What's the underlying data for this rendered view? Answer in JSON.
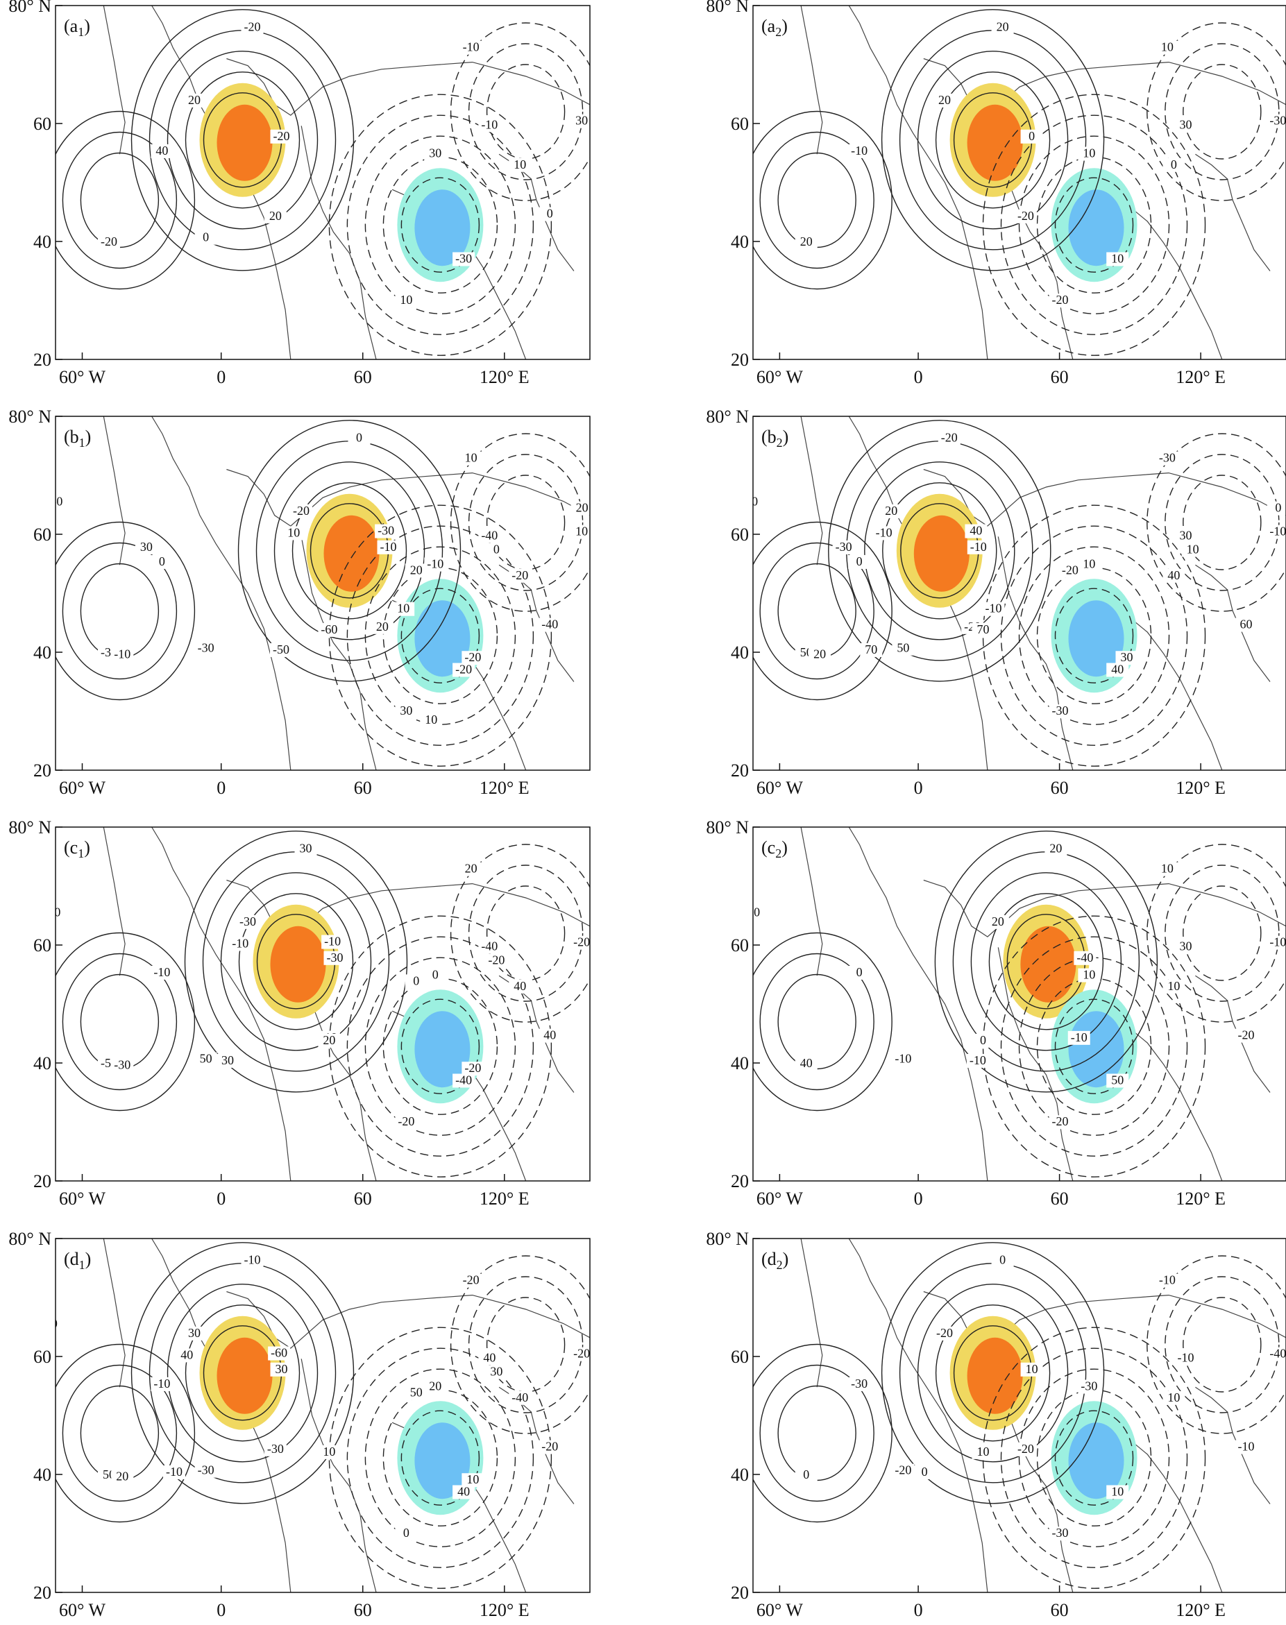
{
  "figure": {
    "panels": [
      {
        "id": "a1",
        "label": "(a",
        "subscript": "1",
        "label_tail": ")",
        "contour_labels": [
          "-20",
          "-30",
          "-20",
          "-10",
          "20",
          "30",
          "40",
          "30",
          "20",
          "10",
          "0",
          "-10",
          "-20",
          "10",
          "0",
          "0"
        ],
        "shading": [
          {
            "kind": "negative",
            "name": "cyan-patch"
          },
          {
            "kind": "positive",
            "name": "orange-patch"
          }
        ]
      },
      {
        "id": "a2",
        "label": "(a",
        "subscript": "2",
        "label_tail": ")",
        "contour_labels": [
          "0",
          "10",
          "20",
          "30",
          "20",
          "10",
          "-10",
          "-30",
          "-20",
          "-20",
          "-10",
          "10",
          "20",
          "0"
        ],
        "shading": [
          {
            "kind": "negative",
            "name": "blue-patch"
          },
          {
            "kind": "positive",
            "name": "orange-patch"
          }
        ]
      },
      {
        "id": "b1",
        "label": "(b",
        "subscript": "1",
        "label_tail": ")",
        "contour_labels": [
          "-10",
          "-20",
          "-30",
          "-40",
          "-20",
          "-10",
          "0",
          "10",
          "20",
          "30",
          "40",
          "10",
          "0",
          "-20",
          "-30",
          "-40",
          "-50",
          "-60",
          "-50",
          "-40",
          "-30",
          "-20",
          "-10",
          "0",
          "10",
          "20",
          "30",
          "20",
          "10",
          "10"
        ],
        "shading": [
          {
            "kind": "positive",
            "name": "orange-patch"
          },
          {
            "kind": "negative",
            "name": "blue-patch"
          }
        ]
      },
      {
        "id": "b2",
        "label": "(b",
        "subscript": "2",
        "label_tail": ")",
        "contour_labels": [
          "-10",
          "40",
          "50",
          "30",
          "20",
          "10",
          "0",
          "-10",
          "-20",
          "-30",
          "-40",
          "-30",
          "-20",
          "40",
          "50",
          "60",
          "70",
          "70",
          "60",
          "50",
          "40",
          "30",
          "20",
          "10",
          "-10",
          "-20",
          "-30",
          "0",
          "-10"
        ],
        "shading": [
          {
            "kind": "positive",
            "name": "orange-patch"
          },
          {
            "kind": "negative",
            "name": "blue-patch"
          }
        ]
      },
      {
        "id": "c1",
        "label": "(c",
        "subscript": "1",
        "label_tail": ")",
        "contour_labels": [
          "-30",
          "-40",
          "-50",
          "-40",
          "-30",
          "0",
          "-10",
          "-20",
          "-10",
          "-20",
          "10",
          "20",
          "30",
          "40",
          "50",
          "40",
          "30",
          "20",
          "10",
          "0",
          "-10",
          "-20",
          "-30",
          "-20",
          "-10",
          "0"
        ],
        "shading": [
          {
            "kind": "positive",
            "name": "orange-patch"
          },
          {
            "kind": "negative",
            "name": "blue-patch"
          }
        ]
      },
      {
        "id": "c2",
        "label": "(c",
        "subscript": "2",
        "label_tail": ")",
        "contour_labels": [
          "-40",
          "50",
          "40",
          "30",
          "20",
          "10",
          "0",
          "-10",
          "-10",
          "-20",
          "0",
          "10",
          "20",
          "10",
          "-10",
          "-20",
          "-10",
          "0",
          "-10",
          "-10"
        ],
        "shading": [
          {
            "kind": "positive",
            "name": "yellow-patch"
          },
          {
            "kind": "negative",
            "name": "cyan-patch"
          }
        ]
      },
      {
        "id": "d1",
        "label": "(d",
        "subscript": "1",
        "label_tail": ")",
        "contour_labels": [
          "30",
          "40",
          "50",
          "40",
          "30",
          "20",
          "-10",
          "-20",
          "-30",
          "0",
          "10",
          "-20",
          "-10",
          "-40",
          "-30",
          "-20",
          "-10",
          "10",
          "0",
          "-50",
          "-60",
          "10",
          "20",
          "30",
          "40",
          "50"
        ],
        "shading": [
          {
            "kind": "positive",
            "name": "orange-patch"
          },
          {
            "kind": "negative",
            "name": "blue-patch"
          }
        ]
      },
      {
        "id": "d2",
        "label": "(d",
        "subscript": "2",
        "label_tail": ")",
        "contour_labels": [
          "10",
          "10",
          "0",
          "-10",
          "-20",
          "-30",
          "-30",
          "-40",
          "-20",
          "-30",
          "-20",
          "-10",
          "0",
          "10",
          "-20",
          "-10",
          "0",
          "10"
        ],
        "shading": [
          {
            "kind": "positive",
            "name": "orange-patch"
          },
          {
            "kind": "negative",
            "name": "cyan-patch"
          }
        ]
      }
    ],
    "axes": {
      "x_ticks": [
        "60° W",
        "0",
        "60",
        "120° E"
      ],
      "y_ticks": [
        "80° N",
        "60",
        "40",
        "20"
      ]
    },
    "colors": {
      "frame": "#111111",
      "contour": "#222222",
      "coast": "#444444",
      "yellow": "#f0d860",
      "orange": "#f47a20",
      "cyan": "#9cf0e0",
      "blue": "#6cc0f4"
    }
  }
}
